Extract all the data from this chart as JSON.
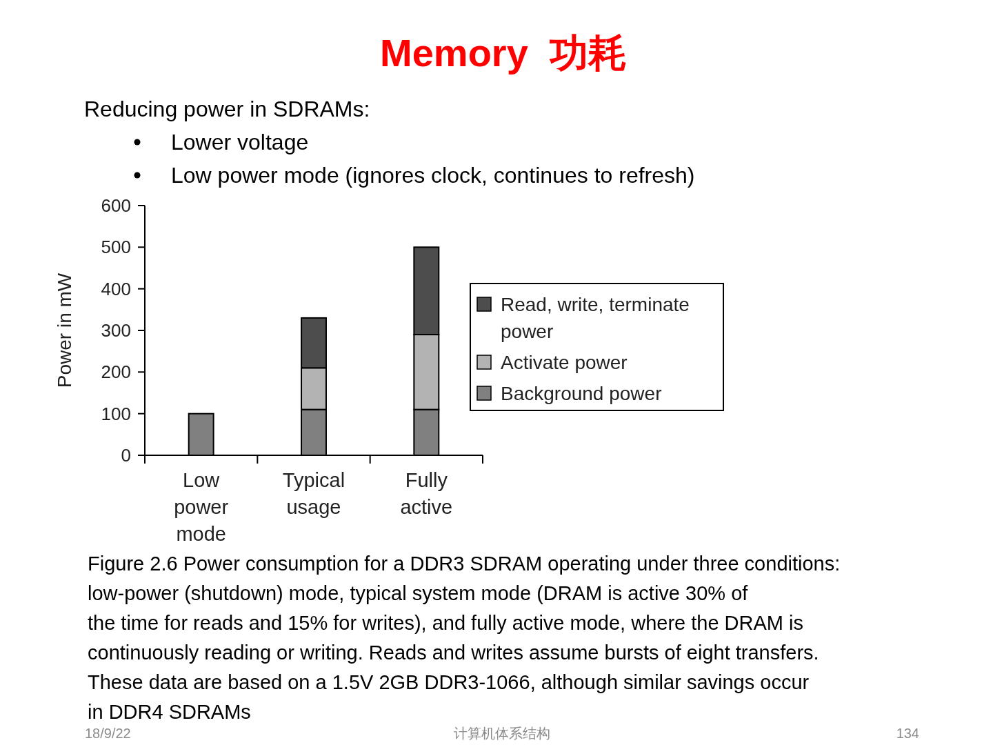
{
  "chart_data": {
    "type": "bar",
    "title": "Memory  功耗",
    "ylabel": "Power in mW",
    "categories": [
      "Low power mode",
      "Typical usage",
      "Fully active"
    ],
    "stacked": true,
    "series": [
      {
        "name": "Background power",
        "color": "#808080",
        "values": [
          100,
          110,
          110
        ]
      },
      {
        "name": "Activate power",
        "color": "#b3b3b3",
        "values": [
          null,
          100,
          180
        ]
      },
      {
        "name": "Read, write, terminate power",
        "color": "#4d4d4d",
        "values": [
          null,
          120,
          210
        ]
      }
    ],
    "ylim": [
      0,
      600
    ],
    "yticks": [
      0,
      100,
      200,
      300,
      400,
      500,
      600
    ],
    "grid": false,
    "legend": "right",
    "annotations": [
      "Reducing power in SDRAMs:",
      "Lower voltage",
      "Low power mode (ignores clock, continues to refresh)",
      "Figure 2.6 Power consumption for a DDR3 SDRAM operating under three conditions:\nlow-power (shutdown) mode, typical system mode (DRAM is active 30% of\nthe time for reads and 15% for writes), and fully active mode, where the DRAM is\ncontinuously reading or writing. Reads and writes assume bursts of eight transfers.\nThese data are based on a 1.5V 2GB DDR3-1066, although similar savings occur\nin DDR4 SDRAMs",
      "18/9/22",
      "计算机体系结构",
      "134"
    ]
  }
}
